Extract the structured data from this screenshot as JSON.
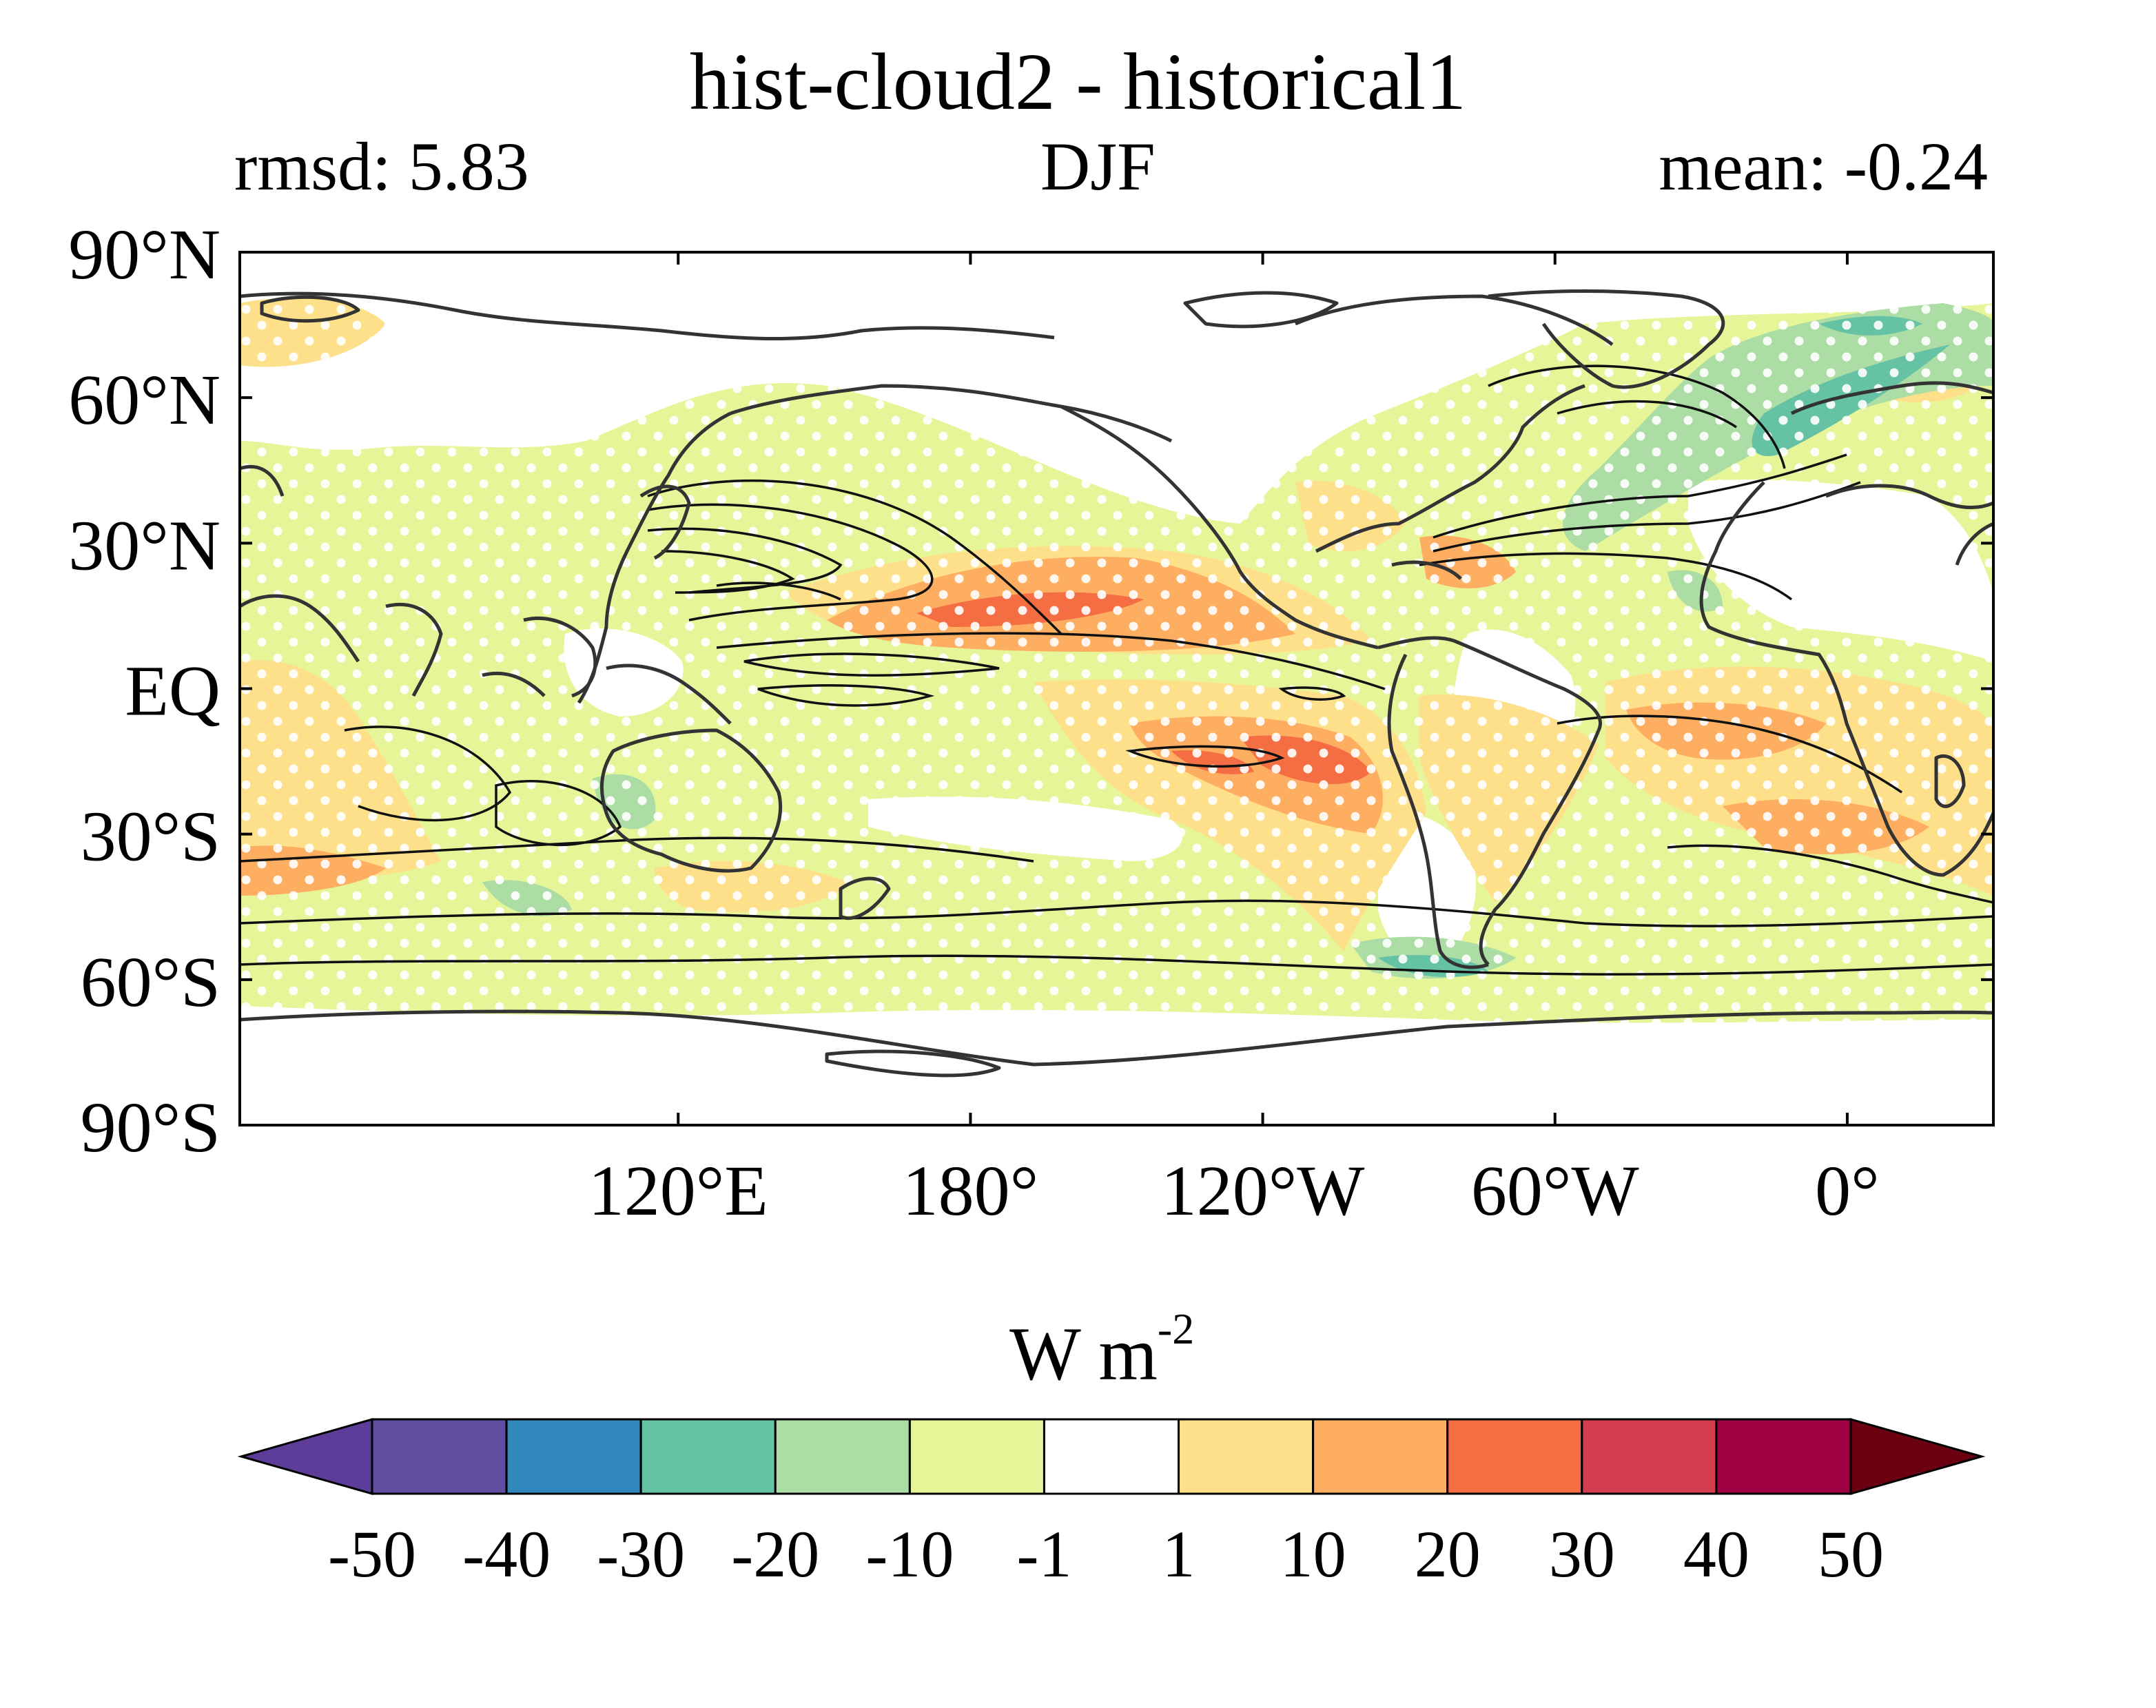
{
  "header": {
    "title": "hist-cloud2 - historical1",
    "left_stat": "rmsd: 5.83",
    "season": "DJF",
    "right_stat": "mean: -0.24"
  },
  "map": {
    "projection": "cylindrical equidistant",
    "lat_range": [
      -90,
      90
    ],
    "lon_range": [
      30,
      390
    ],
    "lat_ticks": [
      {
        "value": 90,
        "label": "90°N"
      },
      {
        "value": 60,
        "label": "60°N"
      },
      {
        "value": 30,
        "label": "30°N"
      },
      {
        "value": 0,
        "label": "EQ"
      },
      {
        "value": -30,
        "label": "30°S"
      },
      {
        "value": -60,
        "label": "60°S"
      },
      {
        "value": -90,
        "label": "90°S"
      }
    ],
    "lon_ticks": [
      {
        "value": 120,
        "label": "120°E"
      },
      {
        "value": 180,
        "label": "180°"
      },
      {
        "value": 240,
        "label": "120°W"
      },
      {
        "value": 300,
        "label": "60°W"
      },
      {
        "value": 360,
        "label": "0°"
      }
    ],
    "overlays": [
      "filled-contours",
      "line-contours",
      "coastlines",
      "stippling"
    ]
  },
  "colorbar": {
    "units_base": "W m",
    "units_exp": "-2",
    "levels": [
      "-50",
      "-40",
      "-30",
      "-20",
      "-10",
      "-1",
      "1",
      "10",
      "20",
      "30",
      "40",
      "50"
    ],
    "colors": [
      "#5e3c99",
      "#604ea0",
      "#3288bd",
      "#66c2a5",
      "#abdda4",
      "#e6f598",
      "#ffffff",
      "#fee08b",
      "#fdae61",
      "#f46d43",
      "#d53e4f",
      "#9e0142",
      "#6b0010"
    ],
    "extend": "both"
  }
}
